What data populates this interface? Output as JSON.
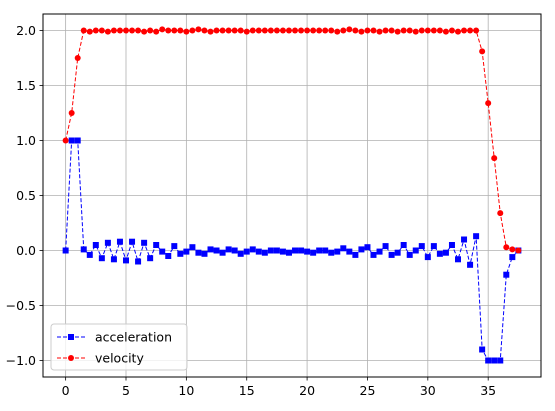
{
  "chart_data": {
    "type": "line",
    "title": "",
    "xlabel": "",
    "ylabel": "",
    "xlim": [
      -1.875,
      39.375
    ],
    "ylim": [
      -1.15,
      2.15
    ],
    "xticks": [
      0,
      5,
      10,
      15,
      20,
      25,
      30,
      35
    ],
    "yticks": [
      -1.0,
      -0.5,
      0.0,
      0.5,
      1.0,
      1.5,
      2.0
    ],
    "xtick_labels": [
      "0",
      "5",
      "10",
      "15",
      "20",
      "25",
      "30",
      "35"
    ],
    "ytick_labels": [
      "−1.0",
      "−0.5",
      "0.0",
      "0.5",
      "1.0",
      "1.5",
      "2.0"
    ],
    "grid": true,
    "legend_position": "lower-left",
    "series": [
      {
        "name": "acceleration",
        "color": "#0000ff",
        "marker": "square",
        "linestyle": "dashed",
        "x": [
          0,
          0.5,
          1,
          1.5,
          2,
          2.5,
          3,
          3.5,
          4,
          4.5,
          5,
          5.5,
          6,
          6.5,
          7,
          7.5,
          8,
          8.5,
          9,
          9.5,
          10,
          10.5,
          11,
          11.5,
          12,
          12.5,
          13,
          13.5,
          14,
          14.5,
          15,
          15.5,
          16,
          16.5,
          17,
          17.5,
          18,
          18.5,
          19,
          19.5,
          20,
          20.5,
          21,
          21.5,
          22,
          22.5,
          23,
          23.5,
          24,
          24.5,
          25,
          25.5,
          26,
          26.5,
          27,
          27.5,
          28,
          28.5,
          29,
          29.5,
          30,
          30.5,
          31,
          31.5,
          32,
          32.5,
          33,
          33.5,
          34,
          34.5,
          35,
          35.5,
          36,
          36.5,
          37,
          37.5
        ],
        "values": [
          0.0,
          1.0,
          1.0,
          0.01,
          -0.04,
          0.05,
          -0.07,
          0.07,
          -0.08,
          0.08,
          -0.09,
          0.08,
          -0.1,
          0.07,
          -0.07,
          0.05,
          -0.01,
          -0.05,
          0.04,
          -0.03,
          -0.01,
          0.03,
          -0.02,
          -0.03,
          0.01,
          0.0,
          -0.02,
          0.01,
          0.0,
          -0.03,
          -0.01,
          0.01,
          -0.01,
          -0.02,
          0.0,
          0.0,
          -0.01,
          -0.02,
          0.0,
          0.0,
          -0.01,
          -0.02,
          0.0,
          0.0,
          -0.02,
          -0.01,
          0.02,
          -0.01,
          -0.04,
          0.01,
          0.03,
          -0.04,
          -0.01,
          0.04,
          -0.04,
          -0.02,
          0.05,
          -0.04,
          0.0,
          0.04,
          -0.06,
          0.04,
          -0.03,
          -0.02,
          0.05,
          -0.08,
          0.1,
          -0.13,
          0.13,
          -0.9,
          -1.0,
          -1.0,
          -1.0,
          -0.22,
          -0.06,
          0.0
        ]
      },
      {
        "name": "velocity",
        "color": "#ff0000",
        "marker": "circle",
        "linestyle": "dashed",
        "x": [
          0,
          0.5,
          1,
          1.5,
          2,
          2.5,
          3,
          3.5,
          4,
          4.5,
          5,
          5.5,
          6,
          6.5,
          7,
          7.5,
          8,
          8.5,
          9,
          9.5,
          10,
          10.5,
          11,
          11.5,
          12,
          12.5,
          13,
          13.5,
          14,
          14.5,
          15,
          15.5,
          16,
          16.5,
          17,
          17.5,
          18,
          18.5,
          19,
          19.5,
          20,
          20.5,
          21,
          21.5,
          22,
          22.5,
          23,
          23.5,
          24,
          24.5,
          25,
          25.5,
          26,
          26.5,
          27,
          27.5,
          28,
          28.5,
          29,
          29.5,
          30,
          30.5,
          31,
          31.5,
          32,
          32.5,
          33,
          33.5,
          34,
          34.5,
          35,
          35.5,
          36,
          36.5,
          37,
          37.5
        ],
        "values": [
          1.0,
          1.25,
          1.75,
          2.0,
          1.99,
          2.0,
          2.0,
          1.99,
          2.0,
          2.0,
          2.0,
          2.0,
          2.0,
          1.99,
          2.0,
          1.99,
          2.01,
          2.0,
          2.0,
          2.0,
          1.99,
          2.0,
          2.01,
          2.0,
          1.99,
          2.0,
          2.0,
          2.0,
          2.0,
          2.0,
          1.99,
          2.0,
          2.0,
          2.0,
          2.0,
          2.0,
          2.0,
          2.0,
          2.0,
          2.0,
          2.0,
          2.0,
          2.0,
          2.0,
          2.0,
          1.99,
          2.0,
          2.01,
          2.0,
          1.99,
          2.0,
          2.0,
          1.99,
          2.0,
          2.0,
          1.99,
          2.0,
          2.0,
          1.99,
          2.0,
          2.0,
          2.0,
          2.0,
          1.99,
          2.0,
          1.99,
          2.0,
          2.0,
          2.0,
          1.81,
          1.34,
          0.84,
          0.34,
          0.03,
          0.01,
          0.0
        ]
      }
    ]
  }
}
